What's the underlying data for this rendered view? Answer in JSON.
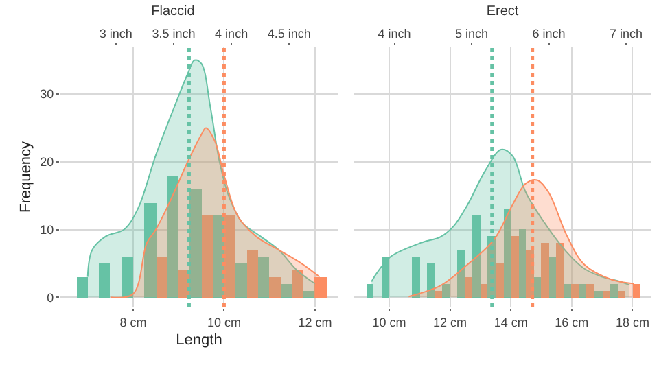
{
  "chart_data": [
    {
      "type": "bar",
      "title": "Flaccid",
      "xlabel": "Length",
      "ylabel": "Frequency",
      "legend": false,
      "grid": true,
      "marker": "none",
      "x": [
        7.0,
        7.5,
        8.0,
        8.5,
        9.0,
        9.5,
        10.0,
        10.5,
        11.0,
        11.5,
        12.0
      ],
      "xlim": [
        6.4,
        12.5
      ],
      "xticks": [
        {
          "value": 8,
          "label": "8 cm"
        },
        {
          "value": 10,
          "label": "10 cm"
        },
        {
          "value": 12,
          "label": "12 cm"
        }
      ],
      "x2lim": [
        2.52,
        4.92
      ],
      "x2ticks": [
        {
          "value": 3,
          "label": "3 inch"
        },
        {
          "value": 3.5,
          "label": "3.5 inch"
        },
        {
          "value": 4,
          "label": "4 inch"
        },
        {
          "value": 4.5,
          "label": "4.5 inch"
        }
      ],
      "ylim": [
        -1.5,
        37
      ],
      "yticks": [
        0,
        10,
        20,
        30
      ],
      "series": [
        {
          "type": "area",
          "color": "#66c2a5",
          "x": [
            7.0,
            7.1,
            7.4,
            7.8,
            8.1,
            8.5,
            8.9,
            9.2,
            9.35,
            9.5,
            9.7,
            9.9,
            10.1,
            10.4,
            10.8,
            11.2,
            11.6,
            12.0
          ],
          "values": [
            3,
            7,
            9,
            10,
            13,
            21,
            28,
            33,
            35,
            34.5,
            28,
            20,
            15,
            11,
            9,
            7,
            4,
            2
          ]
        },
        {
          "type": "area",
          "color": "#fc8d62",
          "x": [
            7.5,
            8.0,
            8.3,
            8.5,
            8.8,
            9.2,
            9.5,
            9.6,
            9.8,
            10.0,
            10.3,
            10.7,
            11.2,
            11.7,
            12.1
          ],
          "values": [
            0,
            0.5,
            8,
            10,
            14,
            20,
            24,
            25,
            23,
            18,
            12,
            9,
            7,
            5,
            3
          ]
        },
        {
          "color": "#66c2a5",
          "values": [
            3,
            5,
            6,
            14,
            18,
            16,
            12,
            5,
            6,
            2,
            1
          ]
        },
        {
          "color": "#fc8d62",
          "values": [
            0,
            0,
            0,
            6,
            4,
            12,
            12,
            7,
            3,
            4,
            3
          ]
        }
      ],
      "ref_lines": [
        {
          "axis": "x",
          "value": 9.23,
          "color": "#66c2a5",
          "line_style": "dotted"
        },
        {
          "axis": "x",
          "value": 10.0,
          "color": "#fc8d62",
          "line_style": "dotted"
        }
      ]
    },
    {
      "type": "bar",
      "title": "Erect",
      "legend": false,
      "grid": true,
      "marker": "none",
      "tick_labels": "x",
      "x": [
        9.5,
        10.0,
        10.5,
        11.0,
        11.5,
        12.0,
        12.5,
        13.0,
        13.5,
        14.0,
        14.5,
        15.0,
        15.5,
        16.0,
        16.5,
        17.0,
        17.5,
        18.0
      ],
      "xlim": [
        8.85,
        18.6
      ],
      "xticks": [
        {
          "value": 10,
          "label": "10 cm"
        },
        {
          "value": 12,
          "label": "12 cm"
        },
        {
          "value": 14,
          "label": "14 cm"
        },
        {
          "value": 16,
          "label": "16 cm"
        },
        {
          "value": 18,
          "label": "18 cm"
        }
      ],
      "x2lim": [
        3.48,
        7.32
      ],
      "x2ticks": [
        {
          "value": 4,
          "label": "4 inch"
        },
        {
          "value": 5,
          "label": "5 inch"
        },
        {
          "value": 6,
          "label": "6 inch"
        },
        {
          "value": 7,
          "label": "7 inch"
        }
      ],
      "ylim": [
        -1.5,
        37
      ],
      "yticks": [
        0,
        10,
        20,
        30
      ],
      "series": [
        {
          "type": "area",
          "color": "#66c2a5",
          "x": [
            9.42,
            9.6,
            10.05,
            11.09,
            11.68,
            12.12,
            12.57,
            13.16,
            13.68,
            14.05,
            14.49,
            15.09,
            15.83,
            16.42,
            17.01,
            17.6,
            17.9
          ],
          "values": [
            2.3,
            3.6,
            6,
            8.1,
            8.9,
            10.5,
            13.6,
            18.7,
            21.8,
            20.9,
            15.5,
            11.1,
            6.7,
            4.2,
            3,
            2.3,
            1.8
          ]
        },
        {
          "type": "area",
          "color": "#fc8d62",
          "x": [
            10.64,
            11.68,
            12.57,
            13.46,
            14.05,
            14.49,
            14.86,
            15.24,
            15.83,
            16.42,
            17.31,
            18.05
          ],
          "values": [
            0.1,
            1.7,
            4.8,
            8.6,
            13.6,
            16.8,
            17.3,
            15.5,
            9.2,
            4.8,
            2.6,
            2
          ]
        },
        {
          "color": "#66c2a5",
          "values": [
            2,
            6,
            0,
            6,
            5,
            2,
            7,
            12,
            9,
            13,
            10,
            3,
            6,
            2,
            2,
            1,
            2,
            0
          ]
        },
        {
          "color": "#fc8d62",
          "values": [
            0,
            0,
            0,
            0,
            1,
            0,
            3,
            2,
            5,
            9,
            7,
            8,
            8,
            2,
            2,
            1,
            1,
            2
          ]
        }
      ],
      "ref_lines": [
        {
          "axis": "x",
          "value": 13.38,
          "color": "#66c2a5",
          "line_style": "dotted"
        },
        {
          "axis": "x",
          "value": 14.71,
          "color": "#fc8d62",
          "line_style": "dotted"
        }
      ]
    }
  ]
}
